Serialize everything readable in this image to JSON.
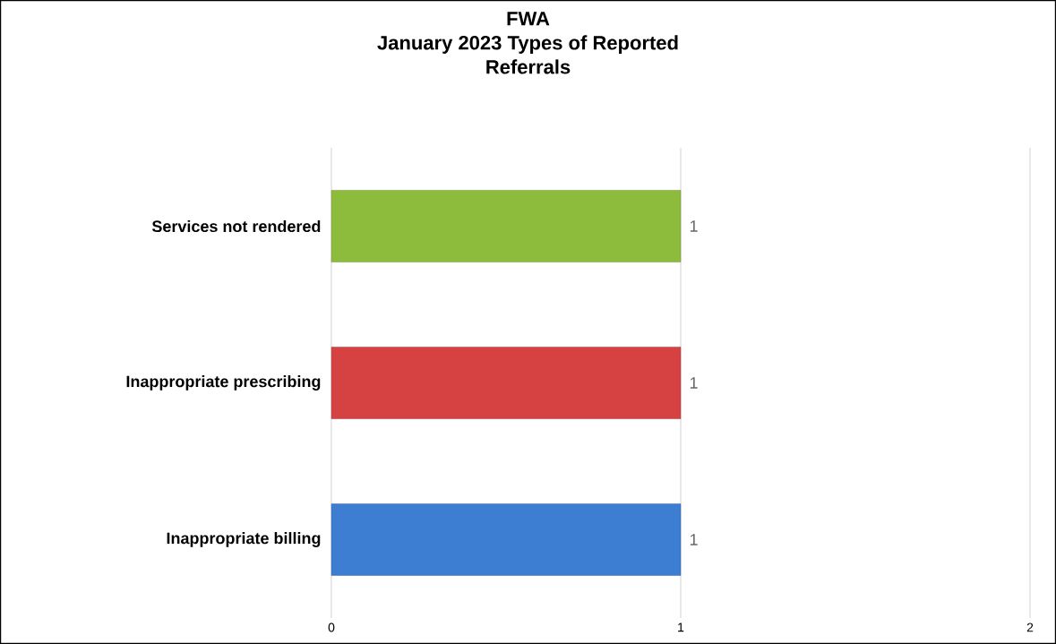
{
  "chart_data": {
    "type": "bar",
    "orientation": "horizontal",
    "title": "FWA",
    "subtitle": "January 2023 Types of Reported Referrals",
    "categories": [
      "Services not rendered",
      "Inappropriate prescribing",
      "Inappropriate billing"
    ],
    "values": [
      1,
      1,
      1
    ],
    "colors": [
      "#8dbb3c",
      "#d64141",
      "#3d7dd2"
    ],
    "xlim": [
      0,
      2
    ],
    "xticks": [
      0,
      1,
      2
    ],
    "grid": "x",
    "data_labels": true
  }
}
